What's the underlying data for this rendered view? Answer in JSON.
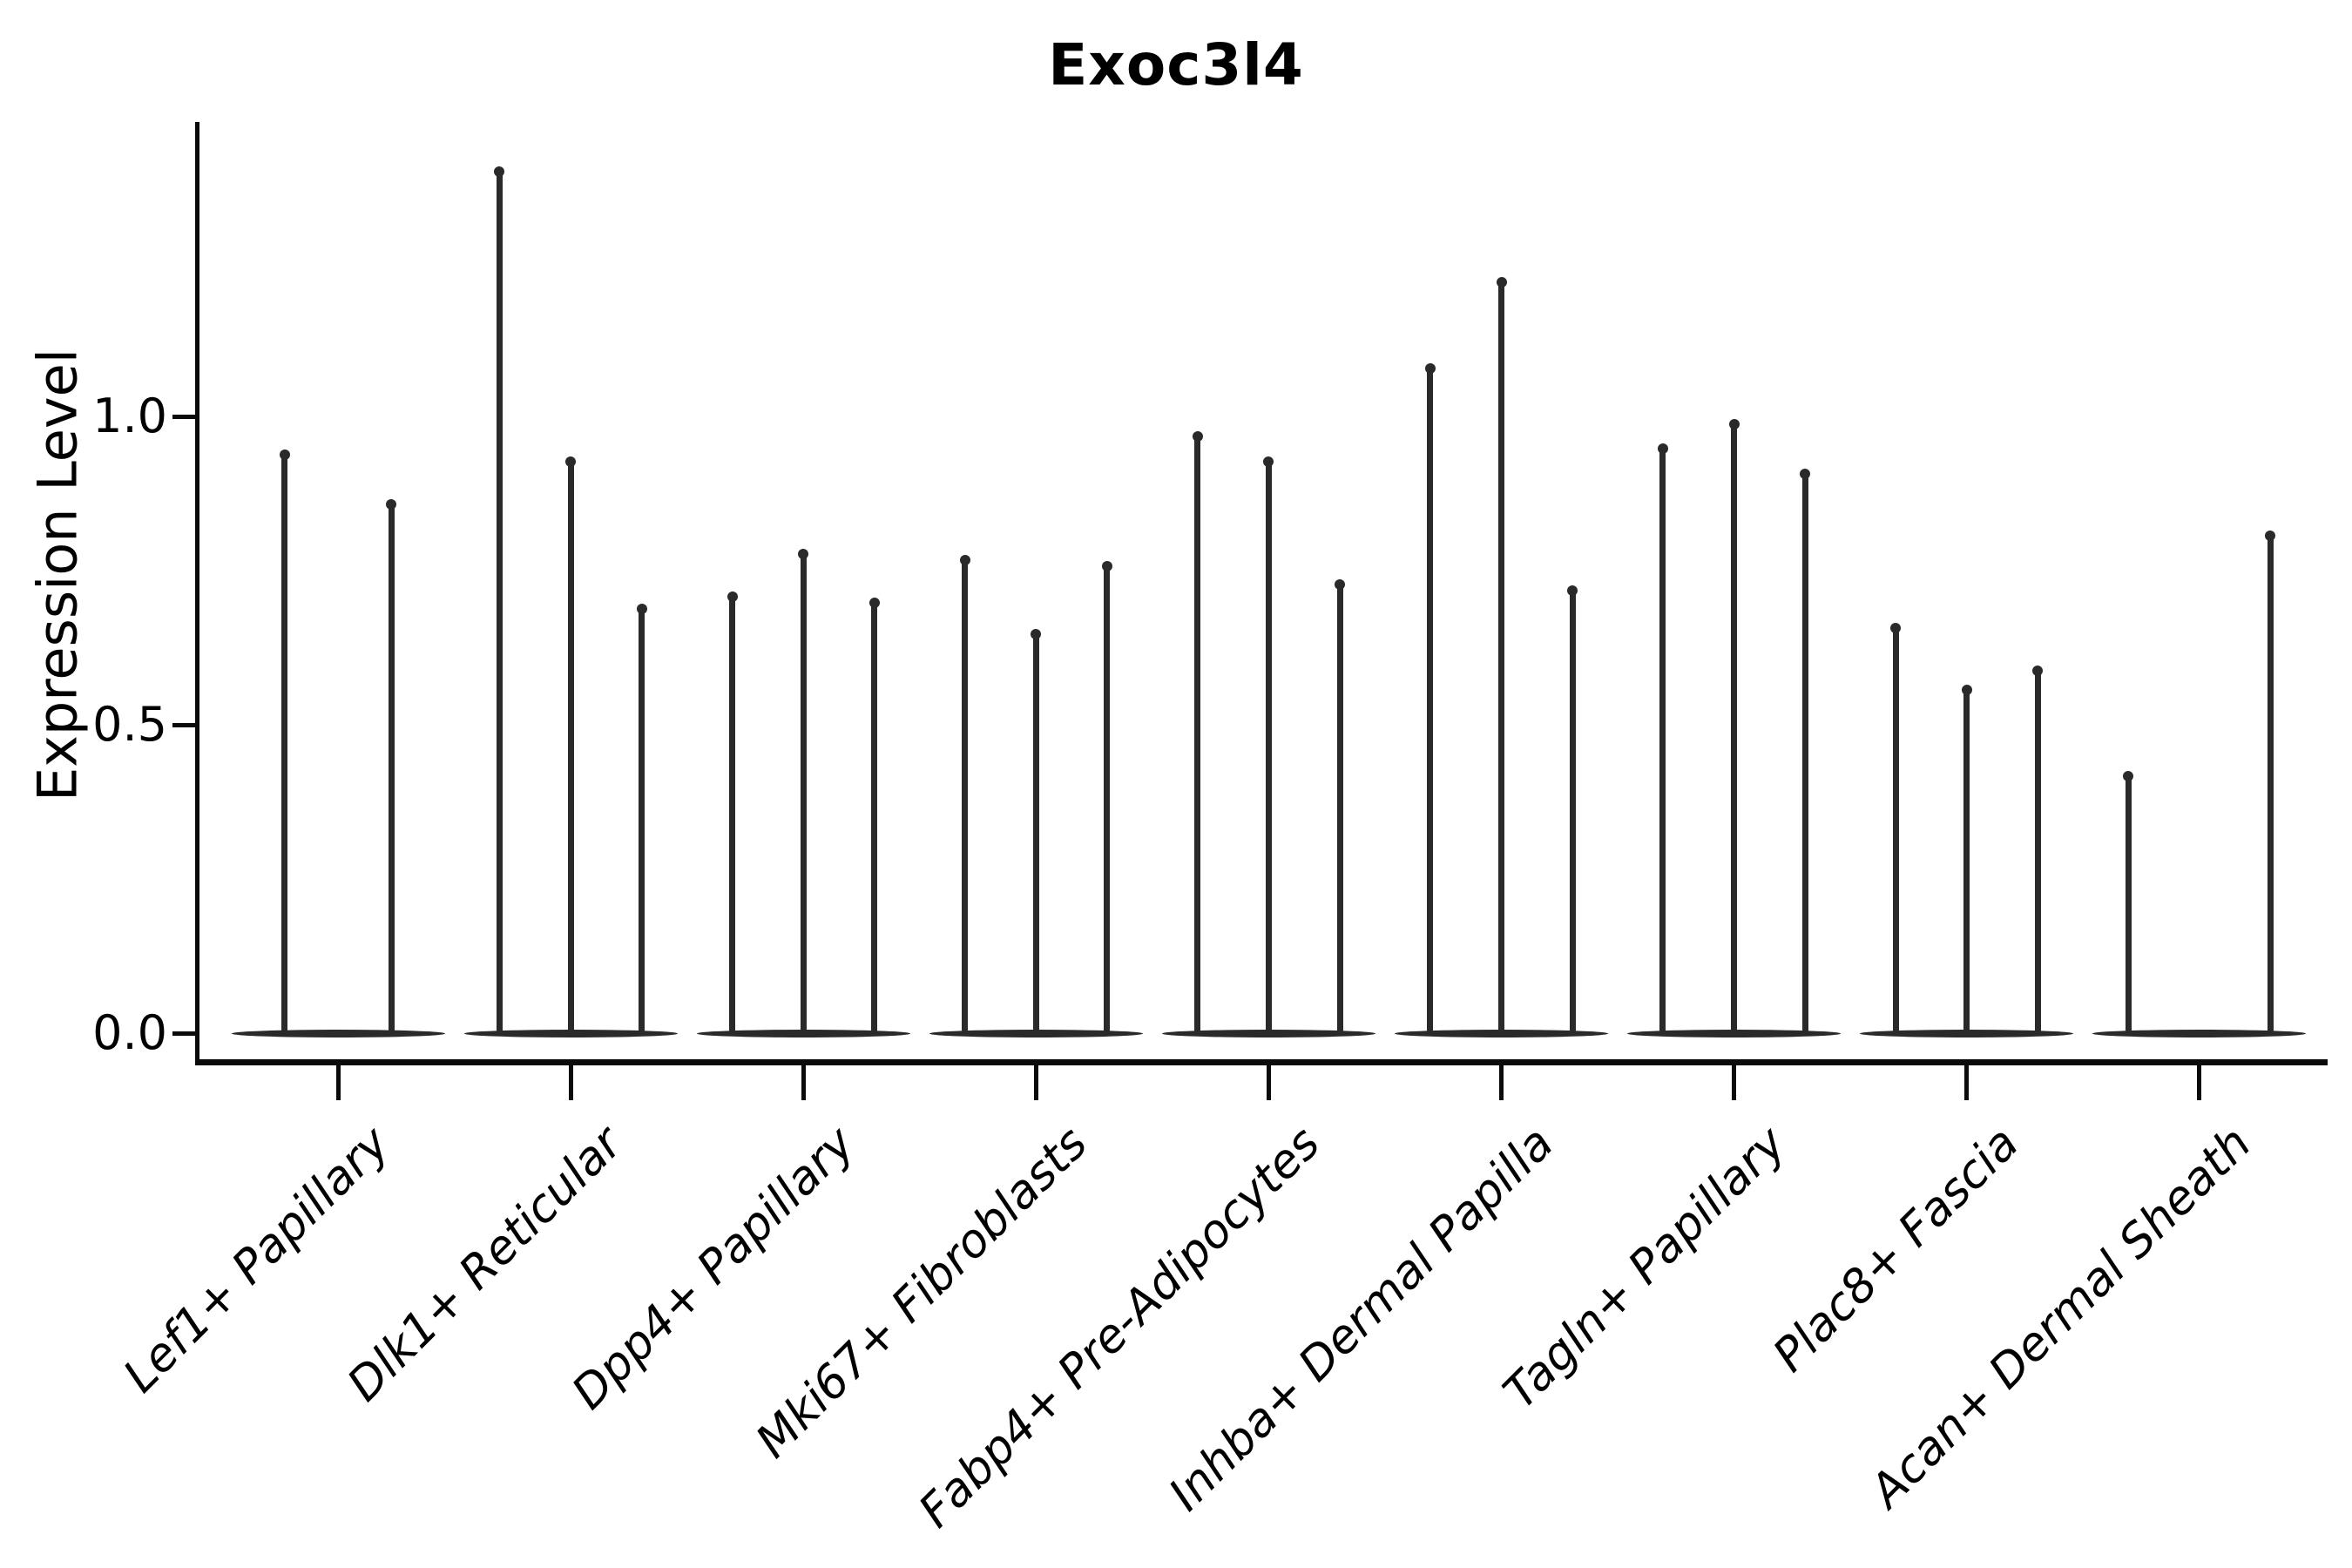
{
  "title": "Exoc3l4",
  "colors": {
    "background": "#ffffff",
    "line": "#2a2a2a",
    "axis": "#0b0b0b",
    "text": "#000000"
  },
  "chart_data": {
    "type": "violin",
    "title": "Exoc3l4",
    "xlabel": "",
    "ylabel": "Expression Level",
    "ylim": [
      -0.05,
      1.48
    ],
    "yticks": [
      {
        "value": 1.0,
        "label": "1.0"
      },
      {
        "value": 0.5,
        "label": "0.5"
      },
      {
        "value": 0.0,
        "label": "0.0"
      }
    ],
    "grid": false,
    "legend": null,
    "categories": [
      "Lef1+ Papillary",
      "Dlk1+ Reticular",
      "Dpp4+ Papillary",
      "Mki67+ Fibroblasts",
      "Fabp4+ Pre-Adipocytes",
      "Inhba+ Dermal Papilla",
      "Tagln+ Papillary",
      "Plac8+ Fascia",
      "Acan+ Dermal Sheath"
    ],
    "groups": [
      {
        "label": "Lef1+ Papillary",
        "violins": [
          {
            "slot": 1,
            "of": 2,
            "peak": 0.94
          },
          {
            "slot": 2,
            "of": 2,
            "peak": 0.86
          }
        ]
      },
      {
        "label": "Dlk1+ Reticular",
        "violins": [
          {
            "slot": 1,
            "of": 3,
            "peak": 1.4
          },
          {
            "slot": 2,
            "of": 3,
            "peak": 0.93
          },
          {
            "slot": 3,
            "of": 3,
            "peak": 0.69
          }
        ]
      },
      {
        "label": "Dpp4+ Papillary",
        "violins": [
          {
            "slot": 1,
            "of": 3,
            "peak": 0.71
          },
          {
            "slot": 2,
            "of": 3,
            "peak": 0.78
          },
          {
            "slot": 3,
            "of": 3,
            "peak": 0.7
          }
        ]
      },
      {
        "label": "Mki67+ Fibroblasts",
        "violins": [
          {
            "slot": 1,
            "of": 3,
            "peak": 0.77
          },
          {
            "slot": 2,
            "of": 3,
            "peak": 0.65
          },
          {
            "slot": 3,
            "of": 3,
            "peak": 0.76
          }
        ]
      },
      {
        "label": "Fabp4+ Pre-Adipocytes",
        "violins": [
          {
            "slot": 1,
            "of": 3,
            "peak": 0.97
          },
          {
            "slot": 2,
            "of": 3,
            "peak": 0.93
          },
          {
            "slot": 3,
            "of": 3,
            "peak": 0.73
          }
        ]
      },
      {
        "label": "Inhba+ Dermal Papilla",
        "violins": [
          {
            "slot": 1,
            "of": 3,
            "peak": 1.08
          },
          {
            "slot": 2,
            "of": 3,
            "peak": 1.22
          },
          {
            "slot": 3,
            "of": 3,
            "peak": 0.72
          }
        ]
      },
      {
        "label": "Tagln+ Papillary",
        "violins": [
          {
            "slot": 1,
            "of": 3,
            "peak": 0.95
          },
          {
            "slot": 2,
            "of": 3,
            "peak": 0.99
          },
          {
            "slot": 3,
            "of": 3,
            "peak": 0.91
          }
        ]
      },
      {
        "label": "Plac8+ Fascia",
        "violins": [
          {
            "slot": 1,
            "of": 3,
            "peak": 0.66
          },
          {
            "slot": 2,
            "of": 3,
            "peak": 0.56
          },
          {
            "slot": 3,
            "of": 3,
            "peak": 0.59
          }
        ]
      },
      {
        "label": "Acan+ Dermal Sheath",
        "violins": [
          {
            "slot": 1,
            "of": 3,
            "peak": 0.42
          },
          {
            "slot": 3,
            "of": 3,
            "peak": 0.81
          }
        ]
      }
    ],
    "baseline_value": 0.0
  }
}
